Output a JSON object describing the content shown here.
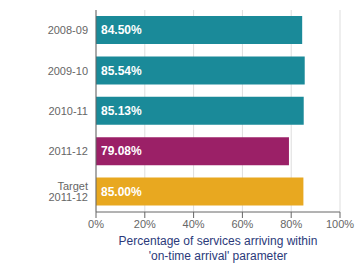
{
  "chart_data": {
    "type": "bar",
    "orientation": "horizontal",
    "categories": [
      "2008-09",
      "2009-10",
      "2010-11",
      "2011-12",
      "Target 2011-12"
    ],
    "values": [
      84.5,
      85.54,
      85.13,
      79.08,
      85.0
    ],
    "value_labels": [
      "84.50%",
      "85.54%",
      "85.13%",
      "79.08%",
      "85.00%"
    ],
    "colors": [
      "#1a8a99",
      "#1a8a99",
      "#1a8a99",
      "#9b2067",
      "#e8a820"
    ],
    "xlabel": "Percentage of services arriving within\n'on-time arrival' parameter",
    "xlim": [
      0,
      100
    ],
    "xticks": [
      {
        "value": 0,
        "label": "0%"
      },
      {
        "value": 20,
        "label": "20%"
      },
      {
        "value": 40,
        "label": "40%"
      },
      {
        "value": 60,
        "label": "60%"
      },
      {
        "value": 80,
        "label": "80%"
      },
      {
        "value": 100,
        "label": "100%"
      }
    ],
    "grid": true,
    "data_labels": true
  }
}
